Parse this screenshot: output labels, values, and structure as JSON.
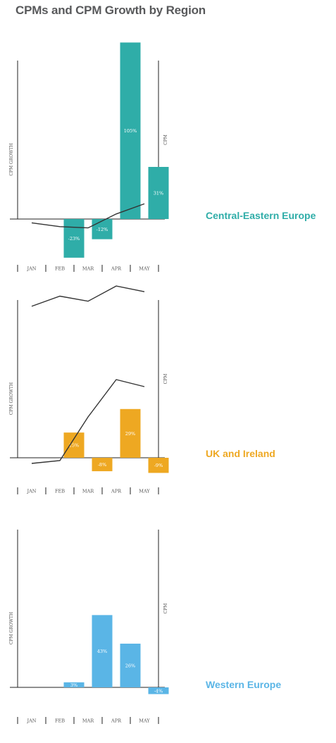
{
  "title": "CPMs and CPM Growth by Region",
  "chart_data": [
    {
      "type": "bar",
      "region": "Central-Eastern Europe",
      "color": "#2fada8",
      "categories": [
        "JAN",
        "FEB",
        "MAR",
        "APR",
        "MAY"
      ],
      "ylabel": "CPM GROWTH",
      "y2label": "CPM",
      "series": [
        {
          "values": [
            null,
            -23,
            -12,
            105,
            31
          ],
          "labels": [
            "",
            "-23%",
            "-12%",
            "105%",
            "31%"
          ]
        },
        {
          "values": [
            48,
            42,
            40,
            62,
            78
          ]
        }
      ]
    },
    {
      "type": "bar",
      "region": "UK and Ireland",
      "color": "#eea822",
      "categories": [
        "JAN",
        "FEB",
        "MAR",
        "APR",
        "MAY"
      ],
      "ylabel": "CPM GROWTH",
      "y2label": "CPM",
      "series": [
        {
          "values": [
            null,
            15,
            -8,
            29,
            -9
          ],
          "labels": [
            "",
            "15%",
            "-8%",
            "29%",
            "-9%"
          ]
        },
        {
          "values": [
            118,
            134,
            126,
            150,
            141
          ]
        }
      ]
    },
    {
      "type": "bar",
      "region": "Western Europe",
      "color": "#5ab5e6",
      "categories": [
        "JAN",
        "FEB",
        "MAR",
        "APR",
        "MAY"
      ],
      "ylabel": "CPM GROWTH",
      "y2label": "CPM",
      "series": [
        {
          "values": [
            null,
            3,
            43,
            26,
            -4
          ],
          "labels": [
            "",
            "3%",
            "43%",
            "26%",
            "-4%"
          ]
        },
        {
          "values": [
            118,
            122,
            184,
            237,
            227
          ]
        }
      ]
    }
  ]
}
